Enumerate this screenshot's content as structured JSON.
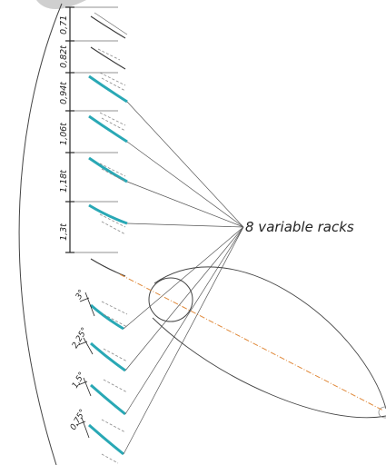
{
  "callout_text": "8 variable racks",
  "spacing_labels": [
    "0,71",
    "0,82t",
    "0,94t",
    "1,06t",
    "1,18t",
    "1,3t"
  ],
  "angle_labels": [
    "3°",
    "2,25°",
    "1,5°",
    "0,75°"
  ],
  "colors": {
    "blade_highlight": "#29a8b5",
    "line": "#3a3a3a",
    "dash": "#8a8a8a",
    "axis": "#e0893a"
  }
}
